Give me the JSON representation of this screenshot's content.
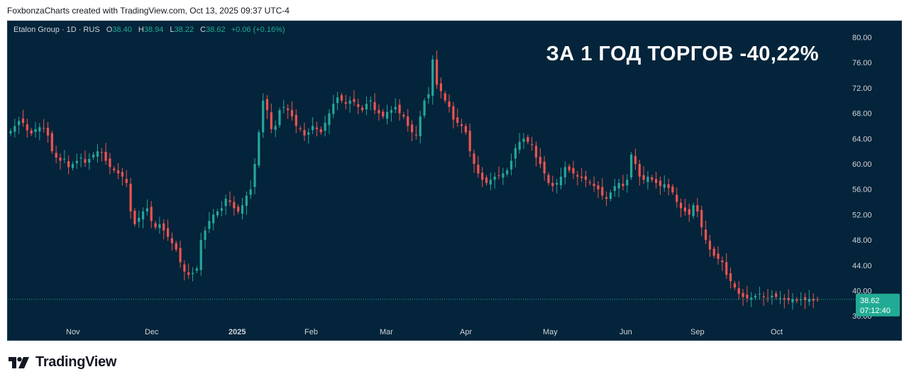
{
  "credit": "FoxbonzaCharts created with TradingView.com, Oct 13, 2025 09:37 UTC-4",
  "legend": {
    "symbol": "Etalon Group · 1D · RUS",
    "open_label": "O",
    "open": "38.40",
    "high_label": "H",
    "high": "38.94",
    "low_label": "L",
    "low": "38.22",
    "close_label": "C",
    "close": "38.62",
    "change": "+0.06 (+0.16%)"
  },
  "headline": "ЗА 1 ГОД ТОРГОВ -40,22%",
  "price_badge": {
    "price": "38.62",
    "countdown": "07:12:40"
  },
  "logo_text": "TradingView",
  "colors": {
    "up": "#26a69a",
    "down": "#ef5350",
    "background": "#03243a",
    "badge": "#22ab94"
  },
  "chart_data": {
    "type": "candlestick",
    "y_axis": {
      "ticks": [
        "80.00",
        "76.00",
        "72.00",
        "68.00",
        "64.00",
        "60.00",
        "56.00",
        "52.00",
        "48.00",
        "44.00",
        "40.00",
        "36.00"
      ],
      "ylim": [
        34.9,
        81.4
      ],
      "position": "right"
    },
    "x_axis": {
      "labels": [
        "Nov",
        "Dec",
        "2025",
        "Feb",
        "Mar",
        "Apr",
        "May",
        "Jun",
        "Sep",
        "Oct"
      ]
    },
    "last_price": 38.62,
    "series_close": [
      65.2,
      66.0,
      66.8,
      66.5,
      65.3,
      64.8,
      65.5,
      65.8,
      65.6,
      64.5,
      62.0,
      61.0,
      60.5,
      60.8,
      59.5,
      60.0,
      60.5,
      61.0,
      60.2,
      60.8,
      61.5,
      62.0,
      61.8,
      60.5,
      59.5,
      59.0,
      58.5,
      58.0,
      57.0,
      52.5,
      50.5,
      51.5,
      52.5,
      53.0,
      51.0,
      50.0,
      50.5,
      49.5,
      48.5,
      47.5,
      46.5,
      44.5,
      43.0,
      42.5,
      42.8,
      43.5,
      48.0,
      49.5,
      51.0,
      52.0,
      52.5,
      53.0,
      54.5,
      54.0,
      53.0,
      52.5,
      53.5,
      55.0,
      56.0,
      60.0,
      65.0,
      70.0,
      68.5,
      65.5,
      66.0,
      68.5,
      69.0,
      68.5,
      67.5,
      66.0,
      65.5,
      64.5,
      65.0,
      66.0,
      65.5,
      65.0,
      66.5,
      68.0,
      69.5,
      70.5,
      70.0,
      69.5,
      70.0,
      69.8,
      69.0,
      68.5,
      69.5,
      70.0,
      68.5,
      68.0,
      67.5,
      68.2,
      68.5,
      69.0,
      68.0,
      67.5,
      66.0,
      65.0,
      64.5,
      67.5,
      70.0,
      71.0,
      76.5,
      72.5,
      71.5,
      70.0,
      69.0,
      67.0,
      66.5,
      66.0,
      65.0,
      62.0,
      60.0,
      58.5,
      57.5,
      57.0,
      57.5,
      58.0,
      58.2,
      58.5,
      59.0,
      60.5,
      62.5,
      63.5,
      64.0,
      63.5,
      63.0,
      61.0,
      60.0,
      58.5,
      57.0,
      56.5,
      57.0,
      58.0,
      59.5,
      59.0,
      58.5,
      58.0,
      57.8,
      57.5,
      57.0,
      56.5,
      56.0,
      55.0,
      54.5,
      55.5,
      56.5,
      57.0,
      56.5,
      57.5,
      61.5,
      60.0,
      58.0,
      57.5,
      58.0,
      57.5,
      57.0,
      56.5,
      56.8,
      56.2,
      55.5,
      54.0,
      53.0,
      52.5,
      52.0,
      53.5,
      52.5,
      50.0,
      48.0,
      46.5,
      45.5,
      45.0,
      44.5,
      42.5,
      41.5,
      40.5,
      39.5,
      39.0,
      38.8,
      38.9,
      39.2,
      39.5,
      39.0,
      38.8,
      39.2,
      39.0,
      38.8,
      38.6,
      38.5,
      38.7,
      38.4,
      38.6,
      38.5,
      38.7,
      38.4,
      38.62
    ]
  }
}
